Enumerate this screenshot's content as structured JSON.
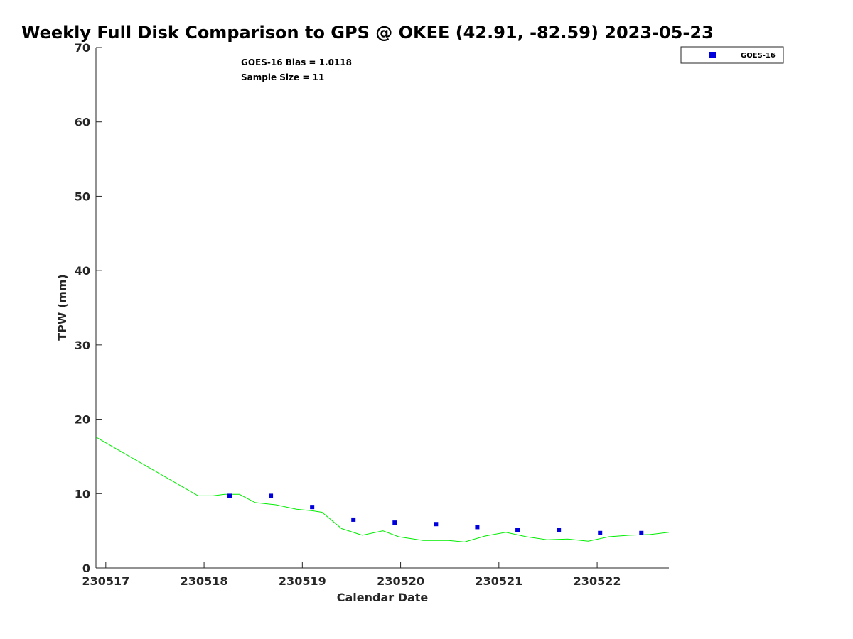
{
  "chart_data": {
    "type": "scatter",
    "title": "Weekly Full Disk Comparison to GPS @ OKEE (42.91, -82.59) 2023-05-23",
    "xlabel": "Calendar Date",
    "ylabel": "TPW (mm)",
    "xlim": [
      230516.9,
      230522.73
    ],
    "ylim": [
      0,
      70
    ],
    "x_ticks": [
      230517,
      230518,
      230519,
      230520,
      230521,
      230522
    ],
    "x_tick_labels": [
      "230517",
      "230518",
      "230519",
      "230520",
      "230521",
      "230522"
    ],
    "y_ticks": [
      0,
      10,
      20,
      30,
      40,
      50,
      60,
      70
    ],
    "y_tick_labels": [
      "0",
      "10",
      "20",
      "30",
      "40",
      "50",
      "60",
      "70"
    ],
    "annotations": [
      "GOES-16 Bias = 1.0118",
      "Sample Size = 11"
    ],
    "legend": {
      "position": "top-right",
      "entries": [
        "GOES-16"
      ]
    },
    "grid": false,
    "series": [
      {
        "name": "GOES-16",
        "style": "markers",
        "color": "#0000dd",
        "points": [
          [
            230518.26,
            9.7
          ],
          [
            230518.68,
            9.7
          ],
          [
            230519.1,
            8.2
          ],
          [
            230519.52,
            6.5
          ],
          [
            230519.94,
            6.1
          ],
          [
            230520.36,
            5.9
          ],
          [
            230520.78,
            5.5
          ],
          [
            230521.19,
            5.1
          ],
          [
            230521.61,
            5.1
          ],
          [
            230522.03,
            4.7
          ],
          [
            230522.45,
            4.7
          ]
        ]
      },
      {
        "style": "line",
        "color": "#00ee00",
        "points": [
          [
            230516.9,
            17.6
          ],
          [
            230517.94,
            9.7
          ],
          [
            230518.09,
            9.7
          ],
          [
            230518.21,
            9.9
          ],
          [
            230518.36,
            9.9
          ],
          [
            230518.52,
            8.8
          ],
          [
            230518.73,
            8.5
          ],
          [
            230518.94,
            7.9
          ],
          [
            230519.1,
            7.7
          ],
          [
            230519.2,
            7.5
          ],
          [
            230519.4,
            5.3
          ],
          [
            230519.61,
            4.4
          ],
          [
            230519.82,
            5.0
          ],
          [
            230519.98,
            4.2
          ],
          [
            230520.23,
            3.7
          ],
          [
            230520.49,
            3.7
          ],
          [
            230520.65,
            3.5
          ],
          [
            230520.86,
            4.3
          ],
          [
            230521.07,
            4.8
          ],
          [
            230521.28,
            4.2
          ],
          [
            230521.49,
            3.8
          ],
          [
            230521.7,
            3.9
          ],
          [
            230521.91,
            3.6
          ],
          [
            230522.12,
            4.2
          ],
          [
            230522.33,
            4.4
          ],
          [
            230522.54,
            4.5
          ],
          [
            230522.73,
            4.8
          ]
        ]
      }
    ]
  }
}
